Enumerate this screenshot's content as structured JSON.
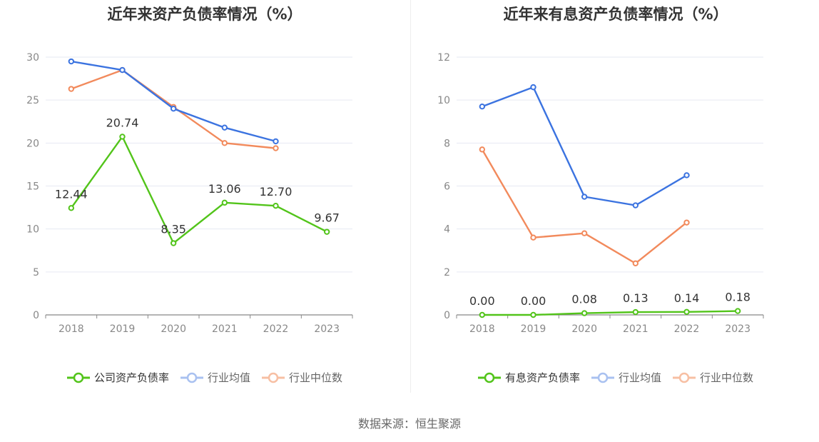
{
  "source_label": "数据来源：恒生聚源",
  "charts": [
    {
      "title": "近年来资产负债率情况（%）",
      "legend": [
        "公司资产负债率",
        "行业均值",
        "行业中位数"
      ]
    },
    {
      "title": "近年来有息资产负债率情况（%）",
      "legend": [
        "有息资产负债率",
        "行业均值",
        "行业中位数"
      ]
    }
  ],
  "chart_data": [
    {
      "type": "line",
      "title": "近年来资产负债率情况（%）",
      "categories": [
        "2018",
        "2019",
        "2020",
        "2021",
        "2022",
        "2023"
      ],
      "ylim": [
        0,
        30
      ],
      "yticks": [
        0,
        5,
        10,
        15,
        20,
        25,
        30
      ],
      "grid": true,
      "legend_position": "bottom",
      "series": [
        {
          "name": "公司资产负债率",
          "color": "#52c41a",
          "values": [
            12.44,
            20.74,
            8.35,
            13.06,
            12.7,
            9.67
          ],
          "labels": [
            "12.44",
            "20.74",
            "8.35",
            "13.06",
            "12.70",
            "9.67"
          ]
        },
        {
          "name": "行业均值",
          "color": "#3b73e0",
          "values": [
            29.5,
            28.5,
            24.0,
            21.8,
            20.2,
            null
          ]
        },
        {
          "name": "行业中位数",
          "color": "#f28a5c",
          "values": [
            26.3,
            28.5,
            24.2,
            20.0,
            19.4,
            null
          ]
        }
      ]
    },
    {
      "type": "line",
      "title": "近年来有息资产负债率情况（%）",
      "categories": [
        "2018",
        "2019",
        "2020",
        "2021",
        "2022",
        "2023"
      ],
      "ylim": [
        0,
        12
      ],
      "yticks": [
        0,
        2,
        4,
        6,
        8,
        10,
        12
      ],
      "grid": true,
      "legend_position": "bottom",
      "series": [
        {
          "name": "有息资产负债率",
          "color": "#52c41a",
          "values": [
            0.0,
            0.0,
            0.08,
            0.13,
            0.14,
            0.18
          ],
          "labels": [
            "0.00",
            "0.00",
            "0.08",
            "0.13",
            "0.14",
            "0.18"
          ]
        },
        {
          "name": "行业均值",
          "color": "#3b73e0",
          "values": [
            9.7,
            10.6,
            5.5,
            5.1,
            6.5,
            null
          ]
        },
        {
          "name": "行业中位数",
          "color": "#f28a5c",
          "values": [
            7.7,
            3.6,
            3.8,
            2.4,
            4.3,
            null
          ]
        }
      ]
    }
  ]
}
